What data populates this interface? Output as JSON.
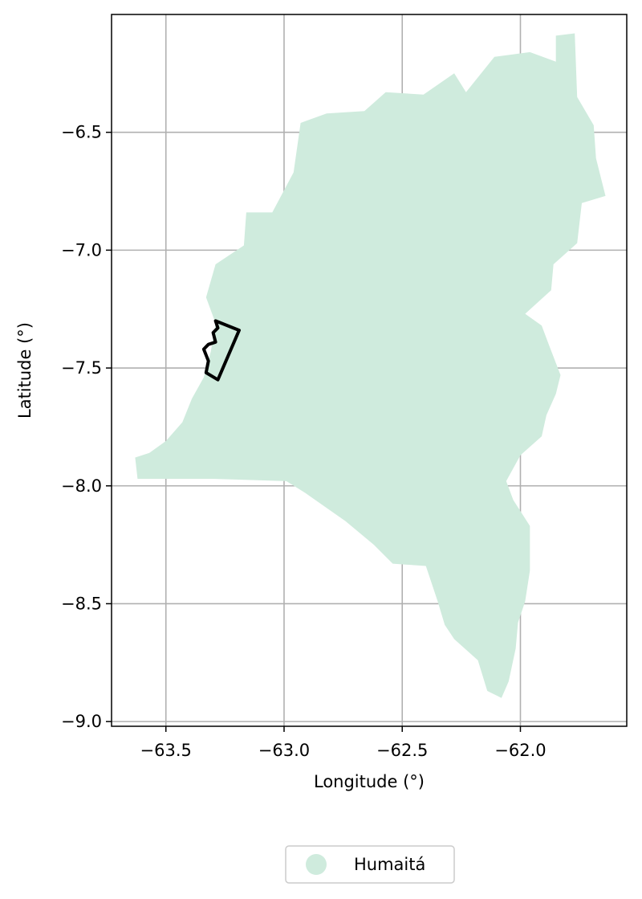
{
  "chart_data": {
    "type": "map",
    "xlabel": "Longitude (°)",
    "ylabel": "Latitude (°)",
    "xlim": [
      -63.73,
      -61.55
    ],
    "ylim": [
      -9.02,
      -6.0
    ],
    "grid": true,
    "xticks": [
      -63.5,
      -63.0,
      -62.5,
      -62.0
    ],
    "xtick_labels": [
      "−63.5",
      "−63.0",
      "−62.5",
      "−62.0"
    ],
    "yticks": [
      -6.5,
      -7.0,
      -7.5,
      -8.0,
      -8.5,
      -9.0
    ],
    "ytick_labels": [
      "−6.5",
      "−7.0",
      "−7.5",
      "−8.0",
      "−8.5",
      "−9.0"
    ],
    "regions": [
      {
        "name": "Humaitá",
        "color": "#cfebdd",
        "outline": [
          [
            -63.62,
            -7.97
          ],
          [
            -63.63,
            -7.88
          ],
          [
            -63.57,
            -7.86
          ],
          [
            -63.5,
            -7.81
          ],
          [
            -63.43,
            -7.73
          ],
          [
            -63.39,
            -7.63
          ],
          [
            -63.34,
            -7.54
          ],
          [
            -63.31,
            -7.43
          ],
          [
            -63.29,
            -7.31
          ],
          [
            -63.33,
            -7.2
          ],
          [
            -63.29,
            -7.06
          ],
          [
            -63.17,
            -6.98
          ],
          [
            -63.16,
            -6.84
          ],
          [
            -63.05,
            -6.84
          ],
          [
            -62.96,
            -6.67
          ],
          [
            -62.93,
            -6.46
          ],
          [
            -62.82,
            -6.42
          ],
          [
            -62.66,
            -6.41
          ],
          [
            -62.57,
            -6.33
          ],
          [
            -62.41,
            -6.34
          ],
          [
            -62.28,
            -6.25
          ],
          [
            -62.23,
            -6.33
          ],
          [
            -62.11,
            -6.18
          ],
          [
            -61.96,
            -6.16
          ],
          [
            -61.85,
            -6.2
          ],
          [
            -61.85,
            -6.09
          ],
          [
            -61.77,
            -6.08
          ],
          [
            -61.76,
            -6.35
          ],
          [
            -61.69,
            -6.47
          ],
          [
            -61.68,
            -6.61
          ],
          [
            -61.64,
            -6.77
          ],
          [
            -61.74,
            -6.8
          ],
          [
            -61.76,
            -6.97
          ],
          [
            -61.86,
            -7.06
          ],
          [
            -61.87,
            -7.17
          ],
          [
            -61.98,
            -7.27
          ],
          [
            -61.91,
            -7.32
          ],
          [
            -61.88,
            -7.4
          ],
          [
            -61.83,
            -7.53
          ],
          [
            -61.85,
            -7.61
          ],
          [
            -61.89,
            -7.7
          ],
          [
            -61.91,
            -7.79
          ],
          [
            -62.0,
            -7.87
          ],
          [
            -62.06,
            -7.98
          ],
          [
            -62.03,
            -8.06
          ],
          [
            -61.96,
            -8.17
          ],
          [
            -61.96,
            -8.36
          ],
          [
            -61.98,
            -8.49
          ],
          [
            -62.01,
            -8.58
          ],
          [
            -62.02,
            -8.69
          ],
          [
            -62.05,
            -8.83
          ],
          [
            -62.08,
            -8.9
          ],
          [
            -62.14,
            -8.87
          ],
          [
            -62.18,
            -8.74
          ],
          [
            -62.28,
            -8.65
          ],
          [
            -62.32,
            -8.59
          ],
          [
            -62.35,
            -8.49
          ],
          [
            -62.4,
            -8.34
          ],
          [
            -62.54,
            -8.33
          ],
          [
            -62.62,
            -8.25
          ],
          [
            -62.74,
            -8.15
          ],
          [
            -62.91,
            -8.03
          ],
          [
            -62.99,
            -7.98
          ],
          [
            -63.3,
            -7.97
          ]
        ]
      }
    ],
    "boundaries": [
      {
        "color": "#000000",
        "outline": [
          [
            -63.29,
            -7.3
          ],
          [
            -63.19,
            -7.34
          ],
          [
            -63.28,
            -7.55
          ],
          [
            -63.33,
            -7.52
          ],
          [
            -63.32,
            -7.47
          ],
          [
            -63.34,
            -7.42
          ],
          [
            -63.32,
            -7.4
          ],
          [
            -63.29,
            -7.39
          ],
          [
            -63.3,
            -7.35
          ],
          [
            -63.28,
            -7.33
          ],
          [
            -63.29,
            -7.3
          ]
        ]
      }
    ],
    "legend": {
      "placement": "bottom-center",
      "entries": [
        {
          "label": "Humaitá",
          "color": "#cfebdd",
          "marker": "circle"
        }
      ]
    }
  }
}
